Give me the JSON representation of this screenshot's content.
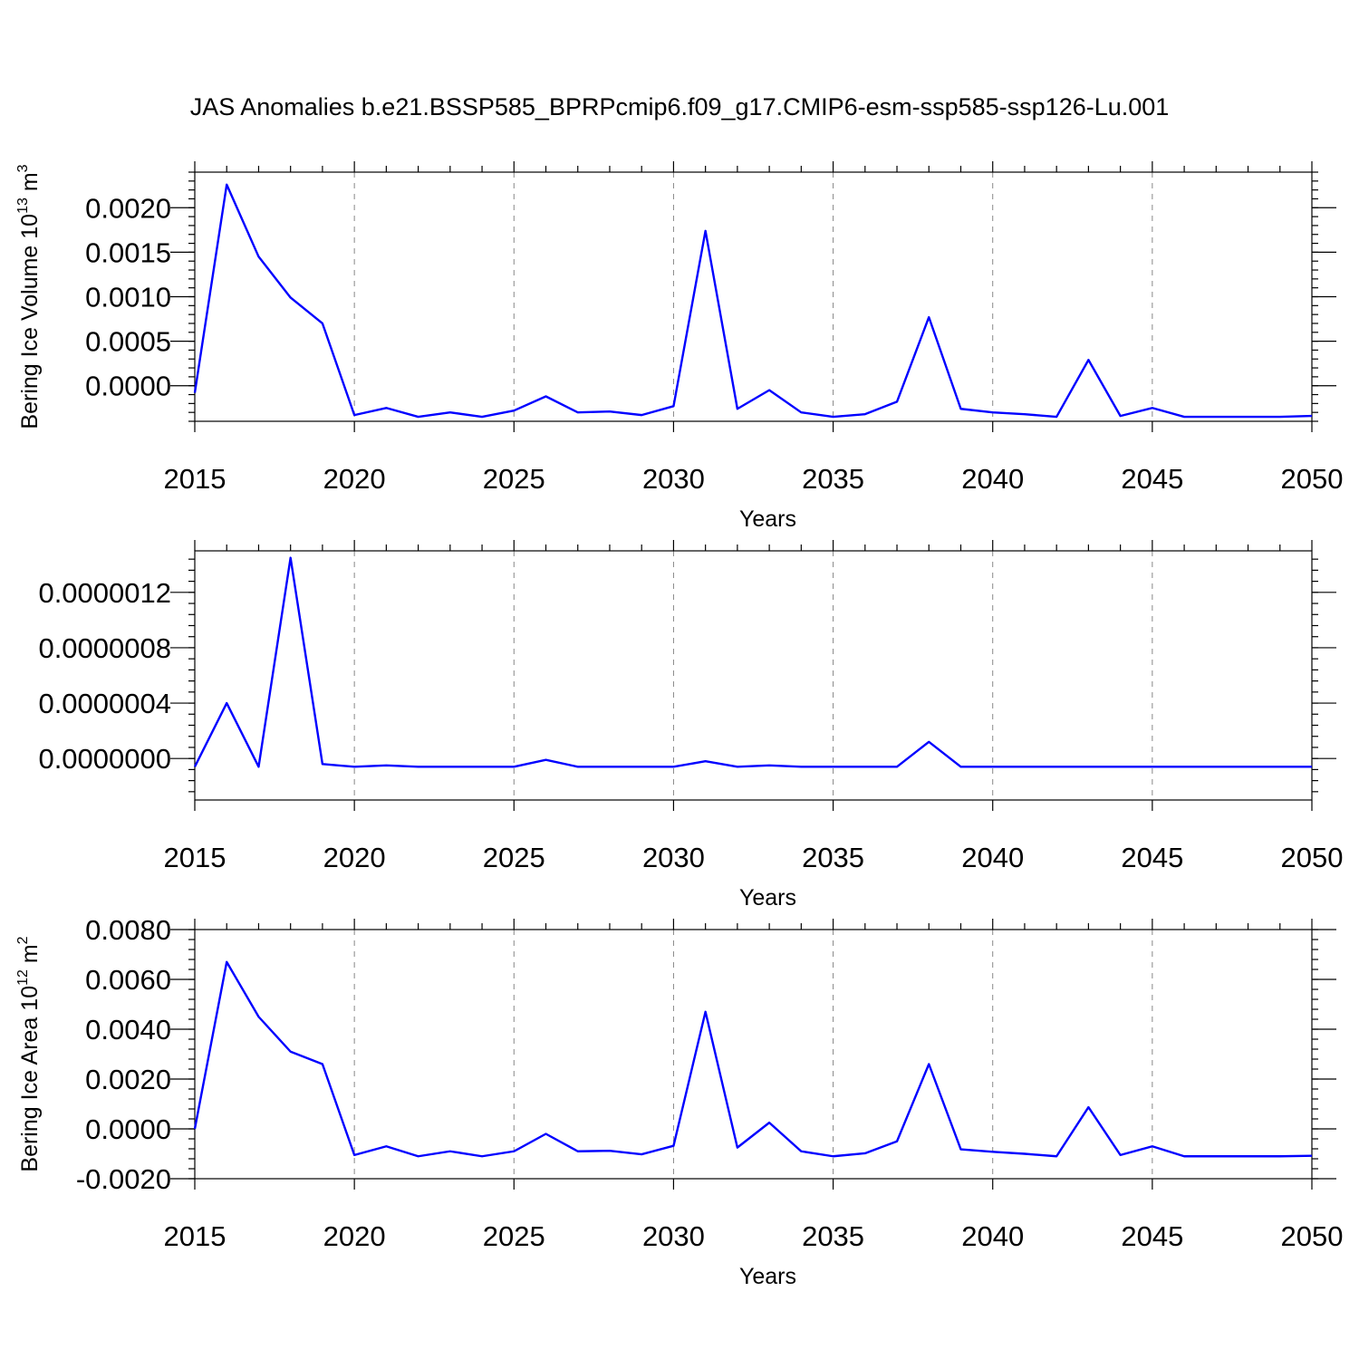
{
  "title": "JAS Anomalies b.e21.BSSP585_BPRPcmip6.f09_g17.CMIP6-esm-ssp585-ssp126-Lu.001",
  "colors": {
    "line": "#0000ff",
    "frame": "#000000",
    "grid": "#888888"
  },
  "chart_data": [
    {
      "type": "line",
      "title": "",
      "xlabel": "Years",
      "ylabel": "Bering Ice Volume 10",
      "ylabel_exp": "13",
      "ylabel_unit": " m",
      "ylabel_unit_exp": "3",
      "xlim": [
        2015,
        2050
      ],
      "ylim": [
        -0.0004,
        0.0024
      ],
      "xticks": [
        2015,
        2020,
        2025,
        2030,
        2035,
        2040,
        2045,
        2050
      ],
      "xtick_labels": [
        "2015",
        "2020",
        "2025",
        "2030",
        "2035",
        "2040",
        "2045",
        "2050"
      ],
      "yticks": [
        0.0,
        0.0005,
        0.001,
        0.0015,
        0.002
      ],
      "ytick_labels": [
        "0.0000",
        "0.0005",
        "0.0010",
        "0.0015",
        "0.0020"
      ],
      "grid": "x-dashed",
      "series": [
        {
          "x": [
            2015,
            2016,
            2017,
            2018,
            2019,
            2020,
            2021,
            2022,
            2023,
            2024,
            2025,
            2026,
            2027,
            2028,
            2029,
            2030,
            2031,
            2032,
            2033,
            2034,
            2035,
            2036,
            2037,
            2038,
            2039,
            2040,
            2041,
            2042,
            2043,
            2044,
            2045,
            2046,
            2047,
            2048,
            2049,
            2050
          ],
          "values": [
            -8e-05,
            0.00226,
            0.00145,
            0.00099,
            0.0007,
            -0.00033,
            -0.00025,
            -0.00035,
            -0.0003,
            -0.00035,
            -0.00028,
            -0.00012,
            -0.0003,
            -0.00029,
            -0.00033,
            -0.00023,
            0.00174,
            -0.00026,
            -5e-05,
            -0.0003,
            -0.00035,
            -0.00032,
            -0.00018,
            0.00077,
            -0.00026,
            -0.0003,
            -0.00032,
            -0.00035,
            0.00029,
            -0.00034,
            -0.00025,
            -0.00035,
            -0.00035,
            -0.00035,
            -0.00035,
            -0.00034
          ]
        }
      ]
    },
    {
      "type": "line",
      "title": "",
      "xlabel": "Years",
      "ylabel": "",
      "xlim": [
        2015,
        2050
      ],
      "ylim": [
        -3e-07,
        1.5e-06
      ],
      "xticks": [
        2015,
        2020,
        2025,
        2030,
        2035,
        2040,
        2045,
        2050
      ],
      "xtick_labels": [
        "2015",
        "2020",
        "2025",
        "2030",
        "2035",
        "2040",
        "2045",
        "2050"
      ],
      "yticks": [
        0.0,
        4e-07,
        8e-07,
        1.2e-06
      ],
      "ytick_labels": [
        "0.0000000",
        "0.0000004",
        "0.0000008",
        "0.0000012"
      ],
      "grid": "x-dashed",
      "series": [
        {
          "x": [
            2015,
            2016,
            2017,
            2018,
            2019,
            2020,
            2021,
            2022,
            2023,
            2024,
            2025,
            2026,
            2027,
            2028,
            2029,
            2030,
            2031,
            2032,
            2033,
            2034,
            2035,
            2036,
            2037,
            2038,
            2039,
            2040,
            2041,
            2042,
            2043,
            2044,
            2045,
            2046,
            2047,
            2048,
            2049,
            2050
          ],
          "values": [
            -6e-08,
            4e-07,
            -6e-08,
            1.45e-06,
            -4e-08,
            -6e-08,
            -5e-08,
            -6e-08,
            -6e-08,
            -6e-08,
            -6e-08,
            -1e-08,
            -6e-08,
            -6e-08,
            -6e-08,
            -6e-08,
            -2e-08,
            -6e-08,
            -5e-08,
            -6e-08,
            -6e-08,
            -6e-08,
            -6e-08,
            1.2e-07,
            -6e-08,
            -6e-08,
            -6e-08,
            -6e-08,
            -6e-08,
            -6e-08,
            -6e-08,
            -6e-08,
            -6e-08,
            -6e-08,
            -6e-08,
            -6e-08
          ]
        }
      ]
    },
    {
      "type": "line",
      "title": "",
      "xlabel": "Years",
      "ylabel": "Bering Ice Area 10",
      "ylabel_exp": "12",
      "ylabel_unit": " m",
      "ylabel_unit_exp": "2",
      "xlim": [
        2015,
        2050
      ],
      "ylim": [
        -0.002,
        0.008
      ],
      "xticks": [
        2015,
        2020,
        2025,
        2030,
        2035,
        2040,
        2045,
        2050
      ],
      "xtick_labels": [
        "2015",
        "2020",
        "2025",
        "2030",
        "2035",
        "2040",
        "2045",
        "2050"
      ],
      "yticks": [
        -0.002,
        0.0,
        0.002,
        0.004,
        0.006,
        0.008
      ],
      "ytick_labels": [
        "-0.0020",
        "0.0000",
        "0.0020",
        "0.0040",
        "0.0060",
        "0.0080"
      ],
      "grid": "x-dashed",
      "series": [
        {
          "x": [
            2015,
            2016,
            2017,
            2018,
            2019,
            2020,
            2021,
            2022,
            2023,
            2024,
            2025,
            2026,
            2027,
            2028,
            2029,
            2030,
            2031,
            2032,
            2033,
            2034,
            2035,
            2036,
            2037,
            2038,
            2039,
            2040,
            2041,
            2042,
            2043,
            2044,
            2045,
            2046,
            2047,
            2048,
            2049,
            2050
          ],
          "values": [
            0.0,
            0.0067,
            0.0045,
            0.0031,
            0.0026,
            -0.00105,
            -0.0007,
            -0.0011,
            -0.0009,
            -0.0011,
            -0.0009,
            -0.0002,
            -0.0009,
            -0.00088,
            -0.00102,
            -0.00068,
            0.0047,
            -0.00075,
            0.00025,
            -0.0009,
            -0.0011,
            -0.00098,
            -0.0005,
            0.0026,
            -0.00082,
            -0.00092,
            -0.001,
            -0.0011,
            0.00087,
            -0.00105,
            -0.0007,
            -0.0011,
            -0.0011,
            -0.0011,
            -0.0011,
            -0.00108
          ]
        }
      ]
    }
  ]
}
